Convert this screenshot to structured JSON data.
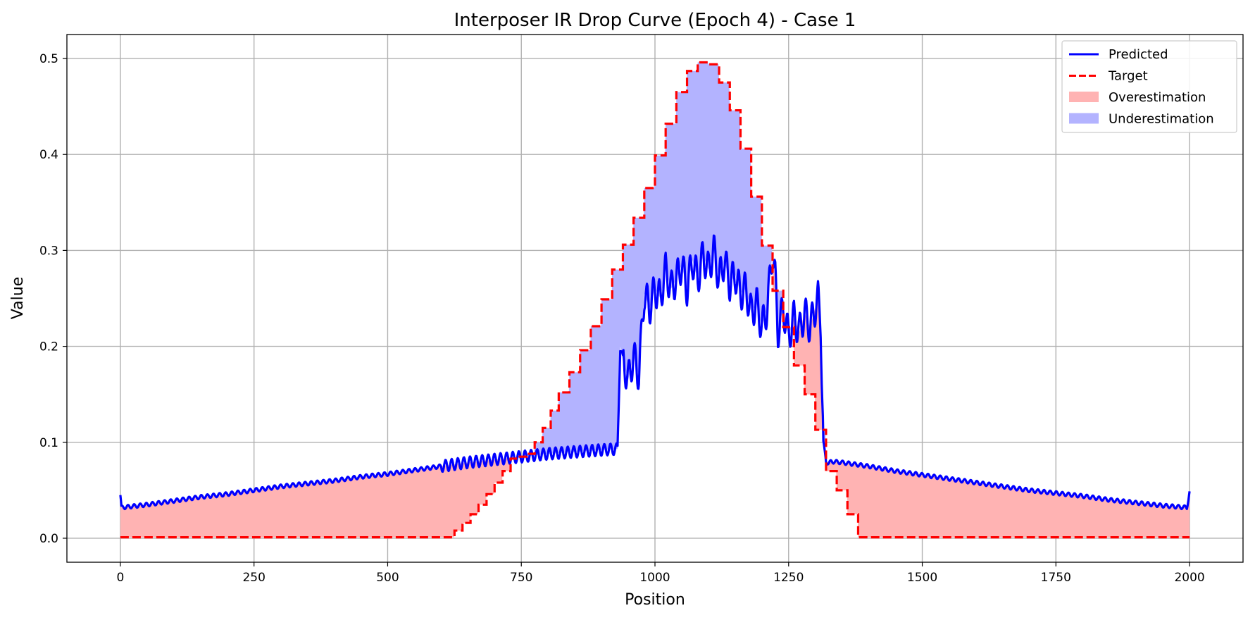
{
  "chart_data": {
    "type": "line",
    "title": "Interposer IR Drop Curve (Epoch 4) - Case 1",
    "xlabel": "Position",
    "ylabel": "Value",
    "xlim": [
      -100,
      2100
    ],
    "ylim": [
      -0.025,
      0.525
    ],
    "grid": true,
    "legend_position": "top-right",
    "x_ticks": [
      0,
      250,
      500,
      750,
      1000,
      1250,
      1500,
      1750,
      2000
    ],
    "x_tick_labels": [
      "0",
      "250",
      "500",
      "750",
      "1000",
      "1250",
      "1500",
      "1750",
      "2000"
    ],
    "y_ticks": [
      0.0,
      0.1,
      0.2,
      0.3,
      0.4,
      0.5
    ],
    "y_tick_labels": [
      "0.0",
      "0.1",
      "0.2",
      "0.3",
      "0.4",
      "0.5"
    ],
    "legend": [
      "Predicted",
      "Target",
      "Overestimation",
      "Underestimation"
    ],
    "colors": {
      "predicted": "#0000ff",
      "target": "#ff0000",
      "overestimation": "#ffb3b3",
      "underestimation": "#b3b3ff",
      "grid": "#b0b0b0"
    },
    "series": [
      {
        "name": "Predicted",
        "x": [
          0,
          2,
          50,
          100,
          150,
          200,
          250,
          300,
          350,
          400,
          450,
          500,
          550,
          600,
          650,
          700,
          750,
          800,
          850,
          900,
          930,
          935,
          940,
          950,
          960,
          970,
          980,
          990,
          1000,
          1010,
          1020,
          1030,
          1040,
          1050,
          1060,
          1070,
          1080,
          1090,
          1100,
          1110,
          1120,
          1130,
          1140,
          1150,
          1160,
          1170,
          1180,
          1190,
          1200,
          1210,
          1220,
          1225,
          1230,
          1240,
          1250,
          1260,
          1270,
          1280,
          1290,
          1300,
          1305,
          1310,
          1315,
          1320,
          1325,
          1330,
          1350,
          1400,
          1450,
          1500,
          1550,
          1600,
          1650,
          1700,
          1750,
          1800,
          1850,
          1900,
          1950,
          1995,
          2000
        ],
        "values": [
          0.045,
          0.032,
          0.035,
          0.039,
          0.043,
          0.046,
          0.05,
          0.054,
          0.057,
          0.06,
          0.064,
          0.067,
          0.071,
          0.075,
          0.079,
          0.082,
          0.085,
          0.088,
          0.09,
          0.092,
          0.093,
          0.2,
          0.185,
          0.165,
          0.19,
          0.17,
          0.255,
          0.24,
          0.26,
          0.25,
          0.28,
          0.26,
          0.27,
          0.285,
          0.26,
          0.29,
          0.27,
          0.295,
          0.28,
          0.3,
          0.27,
          0.29,
          0.265,
          0.275,
          0.255,
          0.26,
          0.235,
          0.245,
          0.22,
          0.24,
          0.3,
          0.27,
          0.215,
          0.24,
          0.21,
          0.23,
          0.215,
          0.235,
          0.22,
          0.24,
          0.25,
          0.225,
          0.1,
          0.08,
          0.078,
          0.08,
          0.079,
          0.075,
          0.07,
          0.066,
          0.062,
          0.058,
          0.054,
          0.05,
          0.047,
          0.044,
          0.04,
          0.037,
          0.034,
          0.032,
          0.048
        ]
      },
      {
        "name": "Target",
        "x": [
          0,
          620,
          625,
          640,
          655,
          670,
          685,
          700,
          715,
          730,
          745,
          760,
          775,
          790,
          805,
          820,
          840,
          860,
          880,
          900,
          920,
          940,
          960,
          980,
          1000,
          1020,
          1040,
          1060,
          1080,
          1100,
          1120,
          1140,
          1160,
          1180,
          1200,
          1220,
          1240,
          1260,
          1280,
          1300,
          1320,
          1340,
          1360,
          1380,
          1400,
          2000
        ],
        "values": [
          0.001,
          0.001,
          0.008,
          0.016,
          0.025,
          0.035,
          0.046,
          0.058,
          0.07,
          0.083,
          0.085,
          0.088,
          0.1,
          0.115,
          0.133,
          0.152,
          0.173,
          0.196,
          0.221,
          0.249,
          0.28,
          0.306,
          0.334,
          0.365,
          0.399,
          0.432,
          0.465,
          0.487,
          0.496,
          0.494,
          0.475,
          0.446,
          0.406,
          0.356,
          0.305,
          0.258,
          0.22,
          0.18,
          0.15,
          0.113,
          0.07,
          0.05,
          0.025,
          0.001,
          0.001,
          0.001
        ]
      }
    ]
  }
}
